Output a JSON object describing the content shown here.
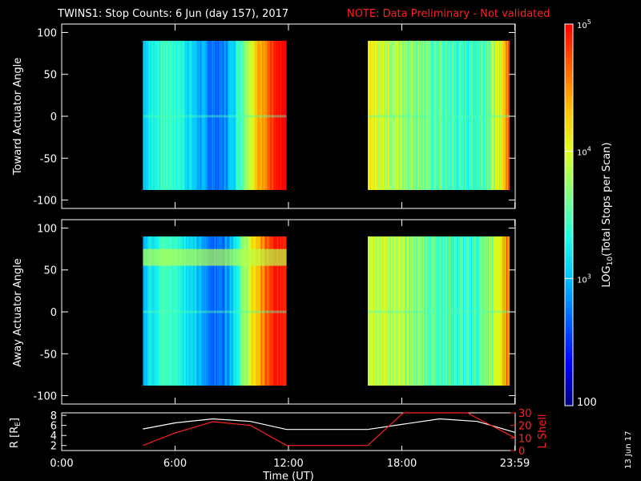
{
  "chart_data": {
    "type": "heatmap",
    "title": "TWINS1: Stop Counts:  6 Jun (day 157), 2017",
    "note": "NOTE: Data Preliminary - Not validated",
    "xlabel": "Time (UT)",
    "x_ticks": [
      "0:00",
      "6:00",
      "12:00",
      "18:00",
      "23:59"
    ],
    "x_tick_hours": [
      0,
      6,
      12,
      18,
      23.98
    ],
    "xlim_hours": [
      0,
      24
    ],
    "date_stamp": "13 Jun 17",
    "colorbar": {
      "label_prefix": "LOG",
      "label_sub": "10",
      "label_suffix": "(Total Stops per Scan)",
      "min": 100,
      "max": 100000,
      "tick_bottom": "100",
      "tick_decades": [
        {
          "value": 1000,
          "base": "10",
          "exp": "3"
        },
        {
          "value": 10000,
          "base": "10",
          "exp": "4"
        },
        {
          "value": 100000,
          "base": "10",
          "exp": "5"
        }
      ],
      "colors": [
        "#00007f",
        "#0000ff",
        "#0060ff",
        "#00c0ff",
        "#20ffe0",
        "#80ff80",
        "#e0ff20",
        "#ffc000",
        "#ff6000",
        "#ff0000"
      ]
    },
    "panels": [
      {
        "id": "toward",
        "ylabel": "Toward Actuator Angle",
        "yticks": [
          "100",
          "50",
          "0",
          "-50",
          "-100"
        ],
        "ytick_values": [
          100,
          50,
          0,
          -50,
          -100
        ],
        "ylim": [
          -110,
          110
        ],
        "angle_range": [
          -88,
          90
        ],
        "data_intervals_hours": [
          [
            4.3,
            11.9
          ],
          [
            16.2,
            23.7
          ]
        ]
      },
      {
        "id": "away",
        "ylabel": "Away Actuator Angle",
        "yticks": [
          "100",
          "50",
          "0",
          "-50",
          "-100"
        ],
        "ytick_values": [
          100,
          50,
          0,
          -50,
          -100
        ],
        "ylim": [
          -110,
          110
        ],
        "angle_range": [
          -88,
          90
        ],
        "data_intervals_hours": [
          [
            4.3,
            11.9
          ],
          [
            16.2,
            23.7
          ]
        ]
      }
    ],
    "orbit": {
      "ylabel_left_prefix": "R [R",
      "ylabel_left_sub": "E",
      "ylabel_left_suffix": "]",
      "ylabel_right": "L Shell",
      "left_ticks": [
        "8",
        "6",
        "4",
        "2"
      ],
      "left_tick_values": [
        8,
        6,
        4,
        2
      ],
      "left_ylim": [
        1,
        8.5
      ],
      "right_ticks": [
        "30",
        "20",
        "10",
        "0"
      ],
      "right_tick_values": [
        30,
        20,
        10,
        0
      ],
      "right_ylim": [
        0,
        30
      ],
      "R_series": {
        "hours": [
          4.3,
          6,
          8,
          10,
          11.9,
          14,
          16.2,
          18,
          20,
          22,
          24
        ],
        "values": [
          5.3,
          6.5,
          7.3,
          6.8,
          5.2,
          5.2,
          5.2,
          6.2,
          7.3,
          6.8,
          4.6
        ]
      },
      "L_series": {
        "hours": [
          4.3,
          6,
          8,
          10,
          11.9,
          14,
          16.2,
          18,
          18.1,
          21.5,
          21.7,
          24
        ],
        "values": [
          4,
          14,
          23,
          20,
          4,
          4,
          4,
          29,
          30,
          30,
          28,
          10
        ]
      }
    }
  }
}
